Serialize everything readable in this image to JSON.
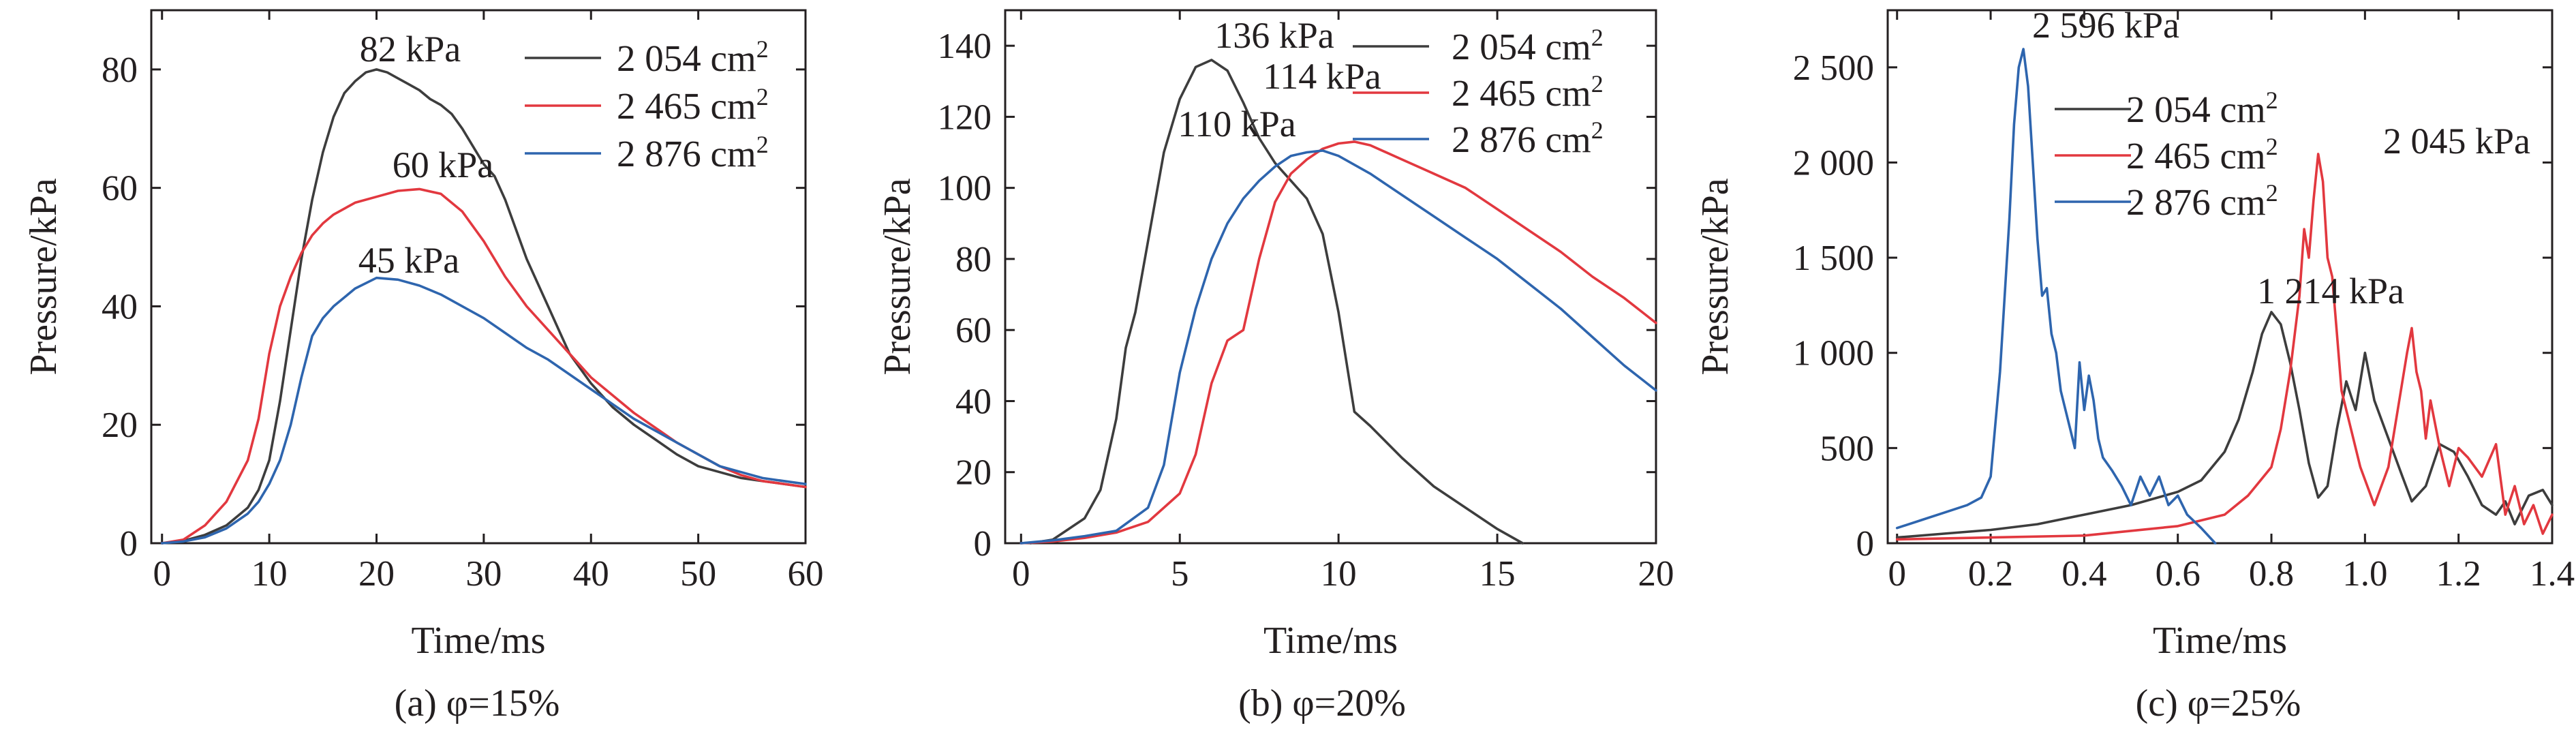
{
  "figure": {
    "captions": [
      "(a) φ=15%",
      "(b) φ=20%",
      "(c) φ=25%"
    ]
  },
  "chart_data": [
    {
      "type": "line",
      "caption": "(a) φ=15%",
      "xlabel": "Time/ms",
      "ylabel": "Pressure/kPa",
      "xlim": [
        -1,
        60
      ],
      "ylim": [
        0,
        90
      ],
      "xticks": [
        0,
        10,
        20,
        30,
        40,
        50,
        60
      ],
      "xtick_labels": [
        "0",
        "10",
        "20",
        "30",
        "40",
        "50",
        "60"
      ],
      "yticks": [
        0,
        20,
        40,
        60,
        80
      ],
      "ytick_labels": [
        "0",
        "20",
        "40",
        "60",
        "80"
      ],
      "legend_position": "top-right",
      "series": [
        {
          "name": "2 054 cm",
          "name_sup": "2",
          "color": "#3d3d3d",
          "x": [
            0,
            2,
            4,
            6,
            8,
            9,
            10,
            11,
            12,
            13,
            14,
            15,
            16,
            17,
            18,
            19,
            20,
            21,
            22,
            23,
            24,
            25,
            26,
            27,
            28,
            29,
            30,
            31,
            32,
            33,
            34,
            35,
            36,
            37,
            38,
            40,
            42,
            44,
            46,
            48,
            50,
            52,
            54,
            56,
            58,
            60
          ],
          "y": [
            0,
            0.4,
            1.4,
            3,
            6,
            9,
            14,
            24,
            36,
            48,
            58,
            66,
            72,
            76,
            78,
            79.5,
            80,
            79.5,
            78.5,
            77.5,
            76.5,
            75,
            74,
            72.5,
            70,
            67,
            64,
            62,
            58,
            53,
            48,
            44,
            40,
            36,
            32,
            27,
            23,
            20,
            17.5,
            15,
            13,
            12,
            11,
            10.5,
            10,
            9.5
          ]
        },
        {
          "name": "2 465 cm",
          "name_sup": "2",
          "color": "#e2383f",
          "x": [
            0,
            2,
            4,
            6,
            8,
            9,
            10,
            11,
            12,
            13,
            14,
            15,
            16,
            18,
            20,
            22,
            24,
            26,
            28,
            30,
            32,
            34,
            36,
            38,
            40,
            42,
            44,
            46,
            48,
            50,
            52,
            54,
            56,
            58,
            60
          ],
          "y": [
            0,
            0.6,
            3,
            7,
            14,
            21,
            32,
            40,
            45,
            49,
            52,
            54,
            55.5,
            57.5,
            58.5,
            59.5,
            59.8,
            59,
            56,
            51,
            45,
            40,
            36,
            32,
            28,
            25,
            22,
            19.5,
            17,
            15,
            13,
            11.5,
            10.5,
            10,
            9.5
          ]
        },
        {
          "name": "2 876 cm",
          "name_sup": "2",
          "color": "#2e65ae",
          "x": [
            0,
            2,
            4,
            6,
            8,
            9,
            10,
            11,
            12,
            13,
            14,
            15,
            16,
            18,
            20,
            22,
            24,
            26,
            28,
            30,
            32,
            34,
            36,
            38,
            40,
            42,
            44,
            46,
            48,
            50,
            52,
            54,
            56,
            58,
            60
          ],
          "y": [
            0,
            0.3,
            1,
            2.5,
            5,
            7,
            10,
            14,
            20,
            28,
            35,
            38,
            40,
            43,
            44.8,
            44.5,
            43.5,
            42,
            40,
            38,
            35.5,
            33,
            31,
            28.5,
            26,
            23.5,
            21,
            19,
            17,
            15,
            13,
            12,
            11,
            10.5,
            10
          ]
        }
      ],
      "annotations": [
        "82 kPa",
        "60 kPa",
        "45 kPa"
      ]
    },
    {
      "type": "line",
      "caption": "(b) φ=20%",
      "xlabel": "Time/ms",
      "ylabel": "Pressure/kPa",
      "xlim": [
        -0.5,
        20
      ],
      "ylim": [
        0,
        150
      ],
      "xticks": [
        0,
        5,
        10,
        15,
        20
      ],
      "xtick_labels": [
        "0",
        "5",
        "10",
        "15",
        "20"
      ],
      "yticks": [
        0,
        20,
        40,
        60,
        80,
        100,
        120,
        140
      ],
      "ytick_labels": [
        "0",
        "20",
        "40",
        "60",
        "80",
        "100",
        "120",
        "140"
      ],
      "legend_position": "top-right",
      "series": [
        {
          "name": "2 054 cm",
          "name_sup": "2",
          "color": "#3d3d3d",
          "x": [
            0.3,
            1,
            2,
            2.5,
            3,
            3.3,
            3.6,
            4,
            4.5,
            5,
            5.5,
            6,
            6.5,
            7,
            7.5,
            8,
            8.5,
            9,
            9.5,
            10,
            10.5,
            11,
            12,
            13,
            14,
            15,
            15.8
          ],
          "y": [
            0,
            1,
            7,
            15,
            35,
            55,
            65,
            85,
            110,
            125,
            134,
            136,
            133,
            124,
            114,
            107,
            102,
            97,
            87,
            65,
            37,
            33,
            24,
            16,
            10,
            4,
            0
          ]
        },
        {
          "name": "2 465 cm",
          "name_sup": "2",
          "color": "#e2383f",
          "x": [
            0,
            1,
            2,
            3,
            4,
            5,
            5.5,
            6,
            6.5,
            7,
            7.5,
            8,
            8.5,
            9,
            9.5,
            10,
            10.5,
            11,
            12,
            13,
            14,
            15,
            16,
            17,
            18,
            19,
            20
          ],
          "y": [
            0,
            0.5,
            1.5,
            3,
            6,
            14,
            25,
            45,
            57,
            60,
            80,
            96,
            104,
            108,
            111,
            112.5,
            113,
            112,
            108,
            104,
            100,
            94,
            88,
            82,
            75,
            69,
            62
          ]
        },
        {
          "name": "2 876 cm",
          "name_sup": "2",
          "color": "#2e65ae",
          "x": [
            0,
            1,
            2,
            3,
            4,
            4.5,
            5,
            5.5,
            6,
            6.5,
            7,
            7.5,
            8,
            8.5,
            9,
            9.5,
            10,
            11,
            12,
            13,
            14,
            15,
            16,
            17,
            18,
            19,
            20
          ],
          "y": [
            0,
            0.8,
            2,
            3.5,
            10,
            22,
            48,
            66,
            80,
            90,
            97,
            102,
            106,
            109,
            110,
            110.5,
            109,
            104,
            98,
            92,
            86,
            80,
            73,
            66,
            58,
            50,
            43
          ]
        }
      ],
      "annotations": [
        "136 kPa",
        "114 kPa",
        "110 kPa"
      ]
    },
    {
      "type": "line",
      "caption": "(c) φ=25%",
      "xlabel": "Time/ms",
      "ylabel": "Pressure/kPa",
      "xlim": [
        -0.02,
        1.4
      ],
      "ylim": [
        0,
        2800
      ],
      "xticks": [
        0,
        0.2,
        0.4,
        0.6,
        0.8,
        1.0,
        1.2,
        1.4
      ],
      "xtick_labels": [
        "0",
        "0.2",
        "0.4",
        "0.6",
        "0.8",
        "1.0",
        "1.2",
        "1.4"
      ],
      "yticks": [
        0,
        500,
        1000,
        1500,
        2000,
        2500
      ],
      "ytick_labels": [
        "0",
        "500",
        "1 000",
        "1 500",
        "2 000",
        "2 500"
      ],
      "legend_position": "top-center",
      "series": [
        {
          "name": "2 054 cm",
          "name_sup": "2",
          "color": "#3d3d3d",
          "x": [
            0,
            0.1,
            0.2,
            0.3,
            0.4,
            0.5,
            0.6,
            0.65,
            0.7,
            0.73,
            0.76,
            0.78,
            0.8,
            0.82,
            0.84,
            0.86,
            0.88,
            0.9,
            0.92,
            0.94,
            0.96,
            0.98,
            1.0,
            1.02,
            1.05,
            1.08,
            1.1,
            1.13,
            1.16,
            1.19,
            1.22,
            1.25,
            1.28,
            1.3,
            1.32,
            1.35,
            1.38,
            1.4
          ],
          "y": [
            30,
            50,
            70,
            100,
            150,
            200,
            270,
            330,
            480,
            650,
            900,
            1100,
            1214,
            1150,
            950,
            700,
            420,
            240,
            300,
            600,
            850,
            700,
            1000,
            750,
            550,
            350,
            220,
            300,
            520,
            480,
            350,
            200,
            150,
            220,
            100,
            250,
            280,
            200
          ]
        },
        {
          "name": "2 465 cm",
          "name_sup": "2",
          "color": "#e2383f",
          "x": [
            0,
            0.2,
            0.4,
            0.6,
            0.7,
            0.75,
            0.8,
            0.82,
            0.84,
            0.86,
            0.87,
            0.88,
            0.89,
            0.9,
            0.91,
            0.92,
            0.93,
            0.94,
            0.95,
            0.97,
            0.99,
            1.02,
            1.05,
            1.07,
            1.09,
            1.1,
            1.11,
            1.12,
            1.13,
            1.14,
            1.16,
            1.18,
            1.2,
            1.22,
            1.25,
            1.28,
            1.3,
            1.32,
            1.34,
            1.36,
            1.38,
            1.4
          ],
          "y": [
            20,
            30,
            40,
            90,
            150,
            250,
            400,
            600,
            900,
            1300,
            1650,
            1500,
            1800,
            2045,
            1900,
            1500,
            1400,
            1100,
            800,
            600,
            400,
            200,
            400,
            700,
            1000,
            1130,
            900,
            800,
            550,
            750,
            500,
            300,
            500,
            450,
            350,
            520,
            150,
            300,
            100,
            200,
            50,
            150
          ]
        },
        {
          "name": "2 876 cm",
          "name_sup": "2",
          "color": "#2e65ae",
          "x": [
            0,
            0.05,
            0.1,
            0.15,
            0.18,
            0.2,
            0.22,
            0.24,
            0.25,
            0.26,
            0.27,
            0.28,
            0.29,
            0.3,
            0.31,
            0.32,
            0.33,
            0.34,
            0.35,
            0.36,
            0.37,
            0.38,
            0.39,
            0.4,
            0.41,
            0.42,
            0.43,
            0.44,
            0.46,
            0.48,
            0.5,
            0.52,
            0.54,
            0.56,
            0.58,
            0.6,
            0.62,
            0.65,
            0.68
          ],
          "y": [
            80,
            120,
            160,
            200,
            240,
            350,
            900,
            1700,
            2200,
            2500,
            2596,
            2400,
            2000,
            1600,
            1300,
            1340,
            1100,
            1000,
            800,
            700,
            600,
            500,
            950,
            700,
            880,
            750,
            550,
            450,
            380,
            300,
            200,
            350,
            250,
            350,
            200,
            250,
            150,
            80,
            0
          ]
        }
      ],
      "annotations": [
        "2 596 kPa",
        "2 045 kPa",
        "1 214 kPa"
      ]
    }
  ]
}
